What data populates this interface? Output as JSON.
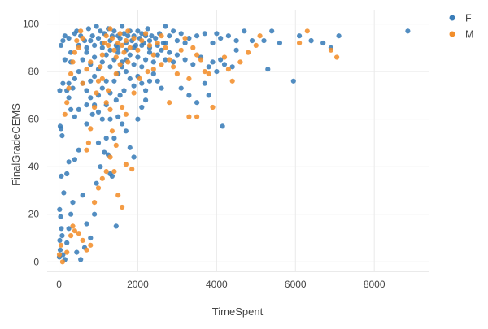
{
  "chart_data": {
    "type": "scatter",
    "xlabel": "TimeSpent",
    "ylabel": "FinalGradeCEMS",
    "xlim": [
      -300,
      9400
    ],
    "ylim": [
      -4,
      106
    ],
    "x_ticks": [
      0,
      2000,
      4000,
      6000,
      8000
    ],
    "y_ticks": [
      0,
      20,
      40,
      60,
      80,
      100
    ],
    "grid": true,
    "legend_position": "top-right",
    "colors": {
      "F": "#3a7db8",
      "M": "#f28e2b"
    },
    "series": [
      {
        "name": "F",
        "points": [
          [
            10,
            2
          ],
          [
            30,
            5
          ],
          [
            20,
            9
          ],
          [
            60,
            14
          ],
          [
            15,
            22
          ],
          [
            40,
            19
          ],
          [
            80,
            11
          ],
          [
            100,
            3
          ],
          [
            150,
            1
          ],
          [
            200,
            8
          ],
          [
            250,
            14
          ],
          [
            300,
            20
          ],
          [
            350,
            25
          ],
          [
            120,
            29
          ],
          [
            60,
            36
          ],
          [
            200,
            37
          ],
          [
            250,
            42
          ],
          [
            400,
            43
          ],
          [
            500,
            47
          ],
          [
            600,
            28
          ],
          [
            700,
            16
          ],
          [
            800,
            10
          ],
          [
            550,
            1
          ],
          [
            450,
            4
          ],
          [
            650,
            6
          ],
          [
            900,
            20
          ],
          [
            950,
            33
          ],
          [
            1050,
            40
          ],
          [
            1150,
            46
          ],
          [
            1250,
            45
          ],
          [
            1350,
            36
          ],
          [
            1450,
            15
          ],
          [
            1300,
            37
          ],
          [
            1200,
            52
          ],
          [
            1000,
            50
          ],
          [
            850,
            62
          ],
          [
            700,
            58
          ],
          [
            500,
            64
          ],
          [
            400,
            61
          ],
          [
            300,
            64
          ],
          [
            250,
            69
          ],
          [
            50,
            56
          ],
          [
            80,
            53
          ],
          [
            30,
            57
          ],
          [
            20,
            72
          ],
          [
            100,
            75
          ],
          [
            200,
            72
          ],
          [
            250,
            75
          ],
          [
            300,
            84
          ],
          [
            150,
            85
          ],
          [
            50,
            91
          ],
          [
            100,
            93
          ],
          [
            150,
            95
          ],
          [
            250,
            94
          ],
          [
            300,
            88
          ],
          [
            400,
            96
          ],
          [
            450,
            97
          ],
          [
            500,
            91
          ],
          [
            550,
            95
          ],
          [
            650,
            93
          ],
          [
            750,
            98
          ],
          [
            800,
            93
          ],
          [
            850,
            95
          ],
          [
            950,
            99
          ],
          [
            1000,
            94
          ],
          [
            1050,
            97
          ],
          [
            1100,
            92
          ],
          [
            1150,
            96
          ],
          [
            1250,
            98
          ],
          [
            1300,
            93
          ],
          [
            1350,
            95
          ],
          [
            1400,
            97
          ],
          [
            1450,
            91
          ],
          [
            1500,
            95
          ],
          [
            1550,
            94
          ],
          [
            1600,
            99
          ],
          [
            1650,
            96
          ],
          [
            1700,
            92
          ],
          [
            1750,
            95
          ],
          [
            1800,
            97
          ],
          [
            1850,
            93
          ],
          [
            1900,
            95
          ],
          [
            1950,
            91
          ],
          [
            2000,
            97
          ],
          [
            2050,
            94
          ],
          [
            2100,
            96
          ],
          [
            2150,
            92
          ],
          [
            2200,
            95
          ],
          [
            2250,
            98
          ],
          [
            2300,
            93
          ],
          [
            2350,
            95
          ],
          [
            2450,
            94
          ],
          [
            2550,
            96
          ],
          [
            2650,
            92
          ],
          [
            2700,
            99
          ],
          [
            2800,
            95
          ],
          [
            2900,
            97
          ],
          [
            3000,
            93
          ],
          [
            3100,
            96
          ],
          [
            3200,
            92
          ],
          [
            3300,
            94
          ],
          [
            3500,
            95
          ],
          [
            3700,
            96
          ],
          [
            3900,
            92
          ],
          [
            4000,
            96
          ],
          [
            4100,
            94
          ],
          [
            4300,
            95
          ],
          [
            4500,
            93
          ],
          [
            4700,
            97
          ],
          [
            4900,
            93
          ],
          [
            5200,
            93
          ],
          [
            5400,
            97
          ],
          [
            5600,
            92
          ],
          [
            6100,
            95
          ],
          [
            6400,
            93
          ],
          [
            6700,
            92
          ],
          [
            6900,
            90
          ],
          [
            7100,
            95
          ],
          [
            8850,
            97
          ],
          [
            500,
            80
          ],
          [
            600,
            75
          ],
          [
            700,
            72
          ],
          [
            800,
            69
          ],
          [
            900,
            66
          ],
          [
            1000,
            63
          ],
          [
            1100,
            60
          ],
          [
            1200,
            66
          ],
          [
            1300,
            71
          ],
          [
            1400,
            76
          ],
          [
            1500,
            79
          ],
          [
            1600,
            82
          ],
          [
            1700,
            85
          ],
          [
            1800,
            87
          ],
          [
            1900,
            83
          ],
          [
            2000,
            86
          ],
          [
            2100,
            82
          ],
          [
            2200,
            85
          ],
          [
            2300,
            88
          ],
          [
            2400,
            84
          ],
          [
            2500,
            87
          ],
          [
            2600,
            89
          ],
          [
            2700,
            85
          ],
          [
            2800,
            88
          ],
          [
            2900,
            84
          ],
          [
            3000,
            87
          ],
          [
            3200,
            85
          ],
          [
            3400,
            83
          ],
          [
            3600,
            86
          ],
          [
            3800,
            82
          ],
          [
            3900,
            84
          ],
          [
            4000,
            80
          ],
          [
            4100,
            85
          ],
          [
            4200,
            83
          ],
          [
            4150,
            57
          ],
          [
            4400,
            82
          ],
          [
            4500,
            89
          ],
          [
            5300,
            81
          ],
          [
            5950,
            76
          ],
          [
            600,
            85
          ],
          [
            700,
            88
          ],
          [
            800,
            83
          ],
          [
            900,
            86
          ],
          [
            1000,
            81
          ],
          [
            1100,
            84
          ],
          [
            1200,
            87
          ],
          [
            1300,
            82
          ],
          [
            1400,
            85
          ],
          [
            1500,
            88
          ],
          [
            1600,
            84
          ],
          [
            1700,
            80
          ],
          [
            1800,
            77
          ],
          [
            1900,
            74
          ],
          [
            2000,
            78
          ],
          [
            2100,
            75
          ],
          [
            2200,
            72
          ],
          [
            2300,
            76
          ],
          [
            2400,
            79
          ],
          [
            2500,
            76
          ],
          [
            2600,
            73
          ],
          [
            1500,
            61
          ],
          [
            1600,
            58
          ],
          [
            1700,
            55
          ],
          [
            1800,
            48
          ],
          [
            1900,
            44
          ],
          [
            2000,
            60
          ],
          [
            2100,
            65
          ],
          [
            2200,
            68
          ],
          [
            1400,
            52
          ],
          [
            1000,
            70
          ],
          [
            1100,
            73
          ],
          [
            1200,
            76
          ],
          [
            900,
            78
          ],
          [
            800,
            76
          ],
          [
            400,
            77
          ],
          [
            350,
            73
          ],
          [
            700,
            66
          ],
          [
            1300,
            60
          ],
          [
            1450,
            68
          ],
          [
            1550,
            70
          ],
          [
            1650,
            72
          ],
          [
            3100,
            73
          ],
          [
            3300,
            70
          ],
          [
            3500,
            67
          ],
          [
            3700,
            75
          ],
          [
            3800,
            70
          ],
          [
            2700,
            92
          ],
          [
            2500,
            91
          ],
          [
            2300,
            90
          ],
          [
            2100,
            91
          ],
          [
            1900,
            90
          ],
          [
            1700,
            89
          ],
          [
            1500,
            90
          ],
          [
            1300,
            89
          ],
          [
            1100,
            90
          ],
          [
            900,
            91
          ],
          [
            700,
            90
          ]
        ]
      },
      {
        "name": "M",
        "points": [
          [
            10,
            3
          ],
          [
            50,
            7
          ],
          [
            90,
            0
          ],
          [
            200,
            4
          ],
          [
            300,
            11
          ],
          [
            350,
            15
          ],
          [
            400,
            13
          ],
          [
            500,
            12
          ],
          [
            600,
            9
          ],
          [
            700,
            5
          ],
          [
            800,
            7
          ],
          [
            900,
            25
          ],
          [
            1000,
            31
          ],
          [
            1100,
            35
          ],
          [
            1200,
            38
          ],
          [
            1300,
            44
          ],
          [
            1400,
            38
          ],
          [
            1500,
            28
          ],
          [
            1600,
            23
          ],
          [
            1700,
            41
          ],
          [
            1850,
            39
          ],
          [
            150,
            62
          ],
          [
            200,
            67
          ],
          [
            250,
            73
          ],
          [
            300,
            79
          ],
          [
            350,
            84
          ],
          [
            400,
            88
          ],
          [
            450,
            93
          ],
          [
            500,
            90
          ],
          [
            550,
            97
          ],
          [
            600,
            94
          ],
          [
            700,
            47
          ],
          [
            750,
            50
          ],
          [
            800,
            56
          ],
          [
            900,
            65
          ],
          [
            950,
            71
          ],
          [
            1000,
            76
          ],
          [
            1050,
            82
          ],
          [
            1100,
            87
          ],
          [
            1150,
            92
          ],
          [
            1200,
            95
          ],
          [
            1250,
            91
          ],
          [
            1300,
            98
          ],
          [
            1350,
            94
          ],
          [
            1400,
            89
          ],
          [
            1450,
            86
          ],
          [
            1500,
            92
          ],
          [
            1550,
            96
          ],
          [
            1600,
            91
          ],
          [
            1650,
            88
          ],
          [
            1700,
            93
          ],
          [
            1750,
            97
          ],
          [
            1800,
            90
          ],
          [
            1900,
            94
          ],
          [
            2000,
            89
          ],
          [
            2100,
            93
          ],
          [
            2200,
            96
          ],
          [
            2300,
            91
          ],
          [
            2400,
            87
          ],
          [
            2500,
            92
          ],
          [
            2600,
            95
          ],
          [
            2700,
            90
          ],
          [
            2800,
            85
          ],
          [
            2900,
            82
          ],
          [
            3000,
            79
          ],
          [
            3100,
            89
          ],
          [
            3200,
            94
          ],
          [
            3400,
            90
          ],
          [
            3500,
            87
          ],
          [
            3600,
            85
          ],
          [
            3700,
            80
          ],
          [
            3800,
            79
          ],
          [
            3900,
            65
          ],
          [
            3500,
            61
          ],
          [
            3300,
            61
          ],
          [
            2800,
            67
          ],
          [
            4200,
            86
          ],
          [
            4300,
            81
          ],
          [
            4400,
            76
          ],
          [
            4600,
            84
          ],
          [
            4800,
            88
          ],
          [
            5000,
            91
          ],
          [
            5100,
            95
          ],
          [
            6100,
            92
          ],
          [
            6300,
            97
          ],
          [
            6900,
            89
          ],
          [
            7050,
            86
          ],
          [
            600,
            75
          ],
          [
            1250,
            72
          ],
          [
            1350,
            55
          ],
          [
            1450,
            49
          ],
          [
            1600,
            65
          ],
          [
            1700,
            62
          ],
          [
            1900,
            71
          ],
          [
            2050,
            77
          ],
          [
            2250,
            80
          ],
          [
            700,
            81
          ],
          [
            800,
            84
          ],
          [
            1100,
            77
          ],
          [
            1200,
            67
          ],
          [
            1300,
            64
          ],
          [
            1450,
            79
          ],
          [
            1550,
            83
          ],
          [
            1750,
            84
          ],
          [
            2400,
            81
          ],
          [
            2600,
            83
          ],
          [
            3300,
            77
          ]
        ]
      }
    ]
  }
}
